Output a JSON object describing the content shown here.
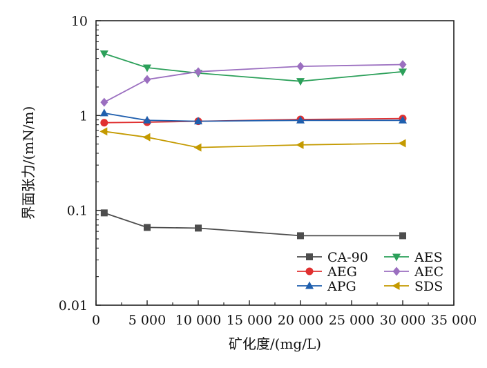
{
  "chart_data": {
    "type": "line",
    "title": "",
    "xlabel": "矿化度/(mg/L)",
    "ylabel": "界面张力/(mN/m)",
    "xlim": [
      0,
      35000
    ],
    "ylim": [
      0.01,
      10
    ],
    "y_scale": "log",
    "grid": false,
    "legend_position": "bottom-right",
    "x_ticks": [
      0,
      5000,
      10000,
      15000,
      20000,
      25000,
      30000,
      35000
    ],
    "x_tick_labels": [
      "0",
      "5 000",
      "10 000",
      "15 000",
      "20 000",
      "25 000",
      "30 000",
      "35 000"
    ],
    "y_ticks": [
      0.01,
      0.1,
      1,
      10
    ],
    "y_tick_labels": [
      "0.01",
      "0.1",
      "1",
      "10"
    ],
    "x": [
      800,
      5000,
      10000,
      20000,
      30000
    ],
    "series": [
      {
        "name": "CA-90",
        "color": "#4d4d4d",
        "marker": "square",
        "values": [
          0.094,
          0.066,
          0.065,
          0.054,
          0.054
        ]
      },
      {
        "name": "AES",
        "color": "#2ca05a",
        "marker": "triangle-down",
        "values": [
          4.5,
          3.2,
          2.8,
          2.3,
          2.9
        ]
      },
      {
        "name": "AEG",
        "color": "#e03030",
        "marker": "circle",
        "values": [
          0.84,
          0.85,
          0.87,
          0.91,
          0.93
        ]
      },
      {
        "name": "AEC",
        "color": "#9b6fc0",
        "marker": "diamond",
        "values": [
          1.38,
          2.4,
          2.9,
          3.3,
          3.45
        ]
      },
      {
        "name": "APG",
        "color": "#1f5fae",
        "marker": "triangle-up",
        "values": [
          1.06,
          0.89,
          0.87,
          0.89,
          0.89
        ]
      },
      {
        "name": "SDS",
        "color": "#c49a00",
        "marker": "triangle-left",
        "values": [
          0.68,
          0.59,
          0.46,
          0.49,
          0.51
        ]
      }
    ]
  }
}
